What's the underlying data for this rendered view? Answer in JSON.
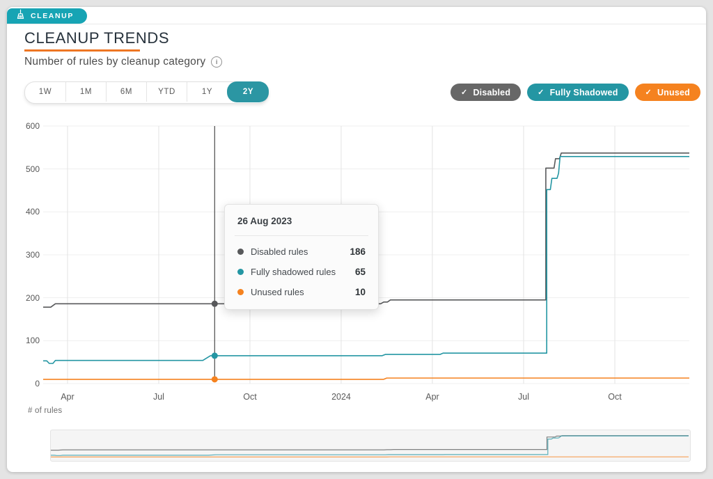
{
  "header": {
    "tab": {
      "label": "CLEANUP",
      "icon": "broom-icon",
      "bg": "#17a4b4"
    },
    "title": "CLEANUP TRENDS",
    "underline_color": "#ee7623",
    "subtitle": "Number of rules by cleanup category",
    "info_icon": "i"
  },
  "range_selector": {
    "options": [
      "1W",
      "1M",
      "6M",
      "YTD",
      "1Y",
      "2Y"
    ],
    "selected": "2Y",
    "selected_bg": "#2b96a3"
  },
  "legend": [
    {
      "label": "Disabled",
      "color": "#676767",
      "check": "✓"
    },
    {
      "label": "Fully Shadowed",
      "color": "#2496a3",
      "check": "✓"
    },
    {
      "label": "Unused",
      "color": "#f5821f",
      "check": "✓"
    }
  ],
  "tooltip": {
    "date": "26 Aug 2023",
    "x_month": 5.84,
    "rows": [
      {
        "label": "Disabled rules",
        "value": "186",
        "color": "#58595b"
      },
      {
        "label": "Fully shadowed rules",
        "value": "65",
        "color": "#2496a3"
      },
      {
        "label": "Unused rules",
        "value": "10",
        "color": "#f5821f"
      }
    ]
  },
  "axis_note": "# of rules",
  "chart_data": {
    "type": "line",
    "title": "Number of rules by cleanup category",
    "ylabel": "# of rules",
    "ylim": [
      0,
      600
    ],
    "yticks": [
      0,
      100,
      200,
      300,
      400,
      500,
      600
    ],
    "x_domain_months": [
      0.2,
      21.45
    ],
    "x_note": "months since Mar 2023; ticks at month starts",
    "xticks": [
      {
        "m": 1,
        "label": "Apr"
      },
      {
        "m": 4,
        "label": "Jul"
      },
      {
        "m": 7,
        "label": "Oct"
      },
      {
        "m": 10,
        "label": "2024"
      },
      {
        "m": 13,
        "label": "Apr"
      },
      {
        "m": 16,
        "label": "Jul"
      },
      {
        "m": 19,
        "label": "Oct"
      }
    ],
    "grid": true,
    "legend_position": "top-right",
    "series": [
      {
        "name": "Disabled rules",
        "color": "#58595b",
        "points": [
          [
            0.2,
            178
          ],
          [
            0.45,
            178
          ],
          [
            0.6,
            186
          ],
          [
            11.3,
            186
          ],
          [
            11.4,
            190
          ],
          [
            11.52,
            190
          ],
          [
            11.62,
            195
          ],
          [
            16.73,
            195
          ],
          [
            16.73,
            502
          ],
          [
            17.0,
            502
          ],
          [
            17.05,
            524
          ],
          [
            17.18,
            524
          ],
          [
            17.24,
            537
          ],
          [
            21.45,
            537
          ]
        ]
      },
      {
        "name": "Fully shadowed rules",
        "color": "#2496a3",
        "points": [
          [
            0.2,
            53
          ],
          [
            0.32,
            53
          ],
          [
            0.4,
            47
          ],
          [
            0.52,
            47
          ],
          [
            0.6,
            54
          ],
          [
            5.45,
            54
          ],
          [
            5.7,
            65
          ],
          [
            11.35,
            65
          ],
          [
            11.45,
            68
          ],
          [
            13.25,
            68
          ],
          [
            13.35,
            71
          ],
          [
            16.76,
            71
          ],
          [
            16.76,
            452
          ],
          [
            16.88,
            452
          ],
          [
            16.93,
            478
          ],
          [
            17.1,
            478
          ],
          [
            17.15,
            490
          ],
          [
            17.2,
            529
          ],
          [
            21.45,
            529
          ]
        ]
      },
      {
        "name": "Unused rules",
        "color": "#f5821f",
        "points": [
          [
            0.2,
            10
          ],
          [
            11.4,
            10
          ],
          [
            11.5,
            13
          ],
          [
            21.45,
            13
          ]
        ]
      }
    ]
  }
}
